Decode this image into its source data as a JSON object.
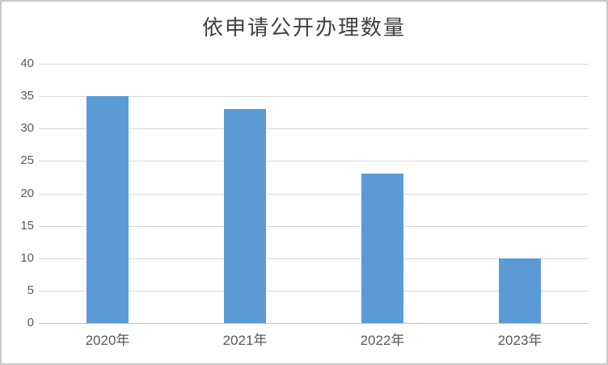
{
  "chart_data": {
    "type": "bar",
    "title": "依申请公开办理数量",
    "categories": [
      "2020年",
      "2021年",
      "2022年",
      "2023年"
    ],
    "values": [
      35,
      33,
      23,
      10
    ],
    "xlabel": "",
    "ylabel": "",
    "ylim": [
      0,
      40
    ],
    "ytick_step": 5,
    "yticks": [
      0,
      5,
      10,
      15,
      20,
      25,
      30,
      35,
      40
    ],
    "grid": true,
    "legend": "none",
    "colors": {
      "bar": "#5B9BD5",
      "gridline": "#D9D9D9",
      "axis_line": "#BFBFBF",
      "tick_text": "#595959",
      "title_text": "#404040",
      "background": "#FFFFFF",
      "frame_border": "#C9C9C9"
    }
  }
}
